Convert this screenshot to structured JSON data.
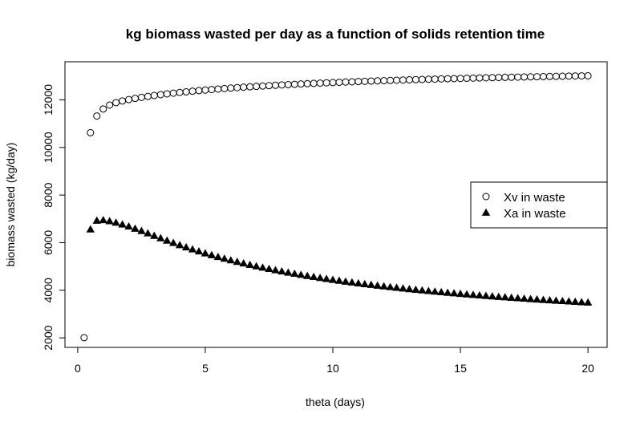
{
  "chart_data": {
    "type": "scatter",
    "title": "kg biomass wasted per day as a function of solids retention time",
    "xlabel": "theta (days)",
    "ylabel": "biomass wasted (kg/day)",
    "xlim": [
      -0.5,
      20.75
    ],
    "ylim": [
      1600,
      13600
    ],
    "xticks": [
      0,
      5,
      10,
      15,
      20
    ],
    "yticks": [
      2000,
      4000,
      6000,
      8000,
      10000,
      12000
    ],
    "grid": false,
    "legend_position": "right",
    "series": [
      {
        "name": "Xv in waste",
        "marker": "open-circle",
        "color": "#000000",
        "x": [
          0.25,
          0.5,
          0.75,
          1,
          1.25,
          1.5,
          1.75,
          2,
          2.25,
          2.5,
          2.75,
          3,
          3.25,
          3.5,
          3.75,
          4,
          4.25,
          4.5,
          4.75,
          5,
          5.25,
          5.5,
          5.75,
          6,
          6.25,
          6.5,
          6.75,
          7,
          7.25,
          7.5,
          7.75,
          8,
          8.25,
          8.5,
          8.75,
          9,
          9.25,
          9.5,
          9.75,
          10,
          10.25,
          10.5,
          10.75,
          11,
          11.25,
          11.5,
          11.75,
          12,
          12.25,
          12.5,
          12.75,
          13,
          13.25,
          13.5,
          13.75,
          14,
          14.25,
          14.5,
          14.75,
          15,
          15.25,
          15.5,
          15.75,
          16,
          16.25,
          16.5,
          16.75,
          17,
          17.25,
          17.5,
          17.75,
          18,
          18.25,
          18.5,
          18.75,
          19,
          19.25,
          19.5,
          19.75,
          20
        ],
        "y": [
          2010,
          10620,
          11321,
          11617,
          11780,
          11883,
          11954,
          12010,
          12060,
          12105,
          12146,
          12184,
          12219,
          12252,
          12282,
          12311,
          12338,
          12364,
          12389,
          12412,
          12434,
          12455,
          12476,
          12495,
          12514,
          12532,
          12549,
          12566,
          12582,
          12597,
          12612,
          12627,
          12641,
          12654,
          12667,
          12680,
          12692,
          12704,
          12716,
          12727,
          12738,
          12749,
          12759,
          12769,
          12779,
          12789,
          12798,
          12807,
          12816,
          12825,
          12833,
          12841,
          12849,
          12857,
          12865,
          12872,
          12880,
          12887,
          12894,
          12901,
          12907,
          12914,
          12920,
          12927,
          12933,
          12939,
          12945,
          12950,
          12956,
          12962,
          12967,
          12972,
          12978,
          12983,
          12988,
          12993,
          12998,
          13002,
          13007,
          13012
        ]
      },
      {
        "name": "Xa in waste",
        "marker": "filled-triangle",
        "color": "#000000",
        "x": [
          0.5,
          0.75,
          1,
          1.25,
          1.5,
          1.75,
          2,
          2.25,
          2.5,
          2.75,
          3,
          3.25,
          3.5,
          3.75,
          4,
          4.25,
          4.5,
          4.75,
          5,
          5.25,
          5.5,
          5.75,
          6,
          6.25,
          6.5,
          6.75,
          7,
          7.25,
          7.5,
          7.75,
          8,
          8.25,
          8.5,
          8.75,
          9,
          9.25,
          9.5,
          9.75,
          10,
          10.25,
          10.5,
          10.75,
          11,
          11.25,
          11.5,
          11.75,
          12,
          12.25,
          12.5,
          12.75,
          13,
          13.25,
          13.5,
          13.75,
          14,
          14.25,
          14.5,
          14.75,
          15,
          15.25,
          15.5,
          15.75,
          16,
          16.25,
          16.5,
          16.75,
          17,
          17.25,
          17.5,
          17.75,
          18,
          18.25,
          18.5,
          18.75,
          19,
          19.25,
          19.5,
          19.75,
          20
        ],
        "y": [
          6560,
          6927,
          6950,
          6905,
          6842,
          6767,
          6684,
          6591,
          6494,
          6394,
          6291,
          6190,
          6090,
          5993,
          5899,
          5808,
          5720,
          5636,
          5555,
          5477,
          5402,
          5330,
          5261,
          5195,
          5131,
          5069,
          5010,
          4953,
          4898,
          4845,
          4794,
          4744,
          4696,
          4650,
          4605,
          4562,
          4520,
          4480,
          4440,
          4402,
          4365,
          4330,
          4295,
          4261,
          4229,
          4197,
          4166,
          4136,
          4107,
          4078,
          4050,
          4023,
          3997,
          3971,
          3946,
          3922,
          3898,
          3875,
          3852,
          3830,
          3808,
          3787,
          3766,
          3746,
          3726,
          3707,
          3688,
          3669,
          3651,
          3633,
          3616,
          3599,
          3582,
          3566,
          3550,
          3534,
          3518,
          3503,
          3488
        ]
      }
    ]
  }
}
